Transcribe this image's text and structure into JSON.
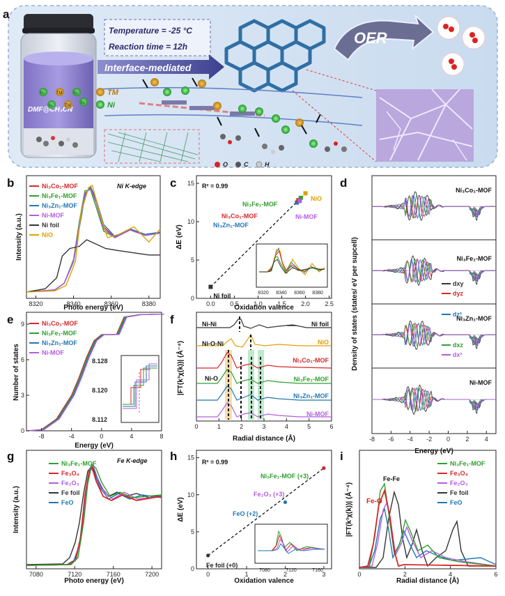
{
  "figure": {
    "panel_letters": [
      "a",
      "b",
      "c",
      "d",
      "e",
      "f",
      "g",
      "h",
      "i"
    ],
    "a": {
      "temp_label": "Temperature = -25 °C",
      "time_label": "Reaction time = 12h",
      "interface_label": "Interface-mediated",
      "oer_label": "OER",
      "tm_label": "TM",
      "ni_label": "Ni",
      "solvent_label": "DMF@CH₃CN",
      "atom_labels": [
        "O",
        "C",
        "H"
      ],
      "vial_labels": [
        "Ni",
        "TM",
        "Ni",
        "Ni",
        "TM",
        "Ni"
      ]
    },
    "colors": {
      "co": "#d62728",
      "fe": "#2ca02c",
      "zn": "#1f77b4",
      "mof": "#b45ce0",
      "foil": "#333333",
      "nio": "#e0a000"
    }
  },
  "chart_data": [
    {
      "id": "b",
      "type": "line",
      "title": "Ni K-edge",
      "xlabel": "Photo energy (eV)",
      "ylabel": "Intensity (a.u.)",
      "xlim": [
        8315,
        8386
      ],
      "xticks": [
        8320,
        8340,
        8360,
        8380
      ],
      "legend": [
        "Ni₃Co₁-MOF",
        "Ni₃Fe₁-MOF",
        "Ni₃Zn₁-MOF",
        "Ni-MOF",
        "Ni foil",
        "NiO"
      ],
      "legend_colors": [
        "#d62728",
        "#2ca02c",
        "#1f77b4",
        "#b45ce0",
        "#333333",
        "#e0a000"
      ],
      "series": [
        {
          "name": "Ni₃Co₁-MOF",
          "x": [
            8315,
            8330,
            8335,
            8340,
            8343,
            8346,
            8349,
            8352,
            8356,
            8362,
            8370,
            8378,
            8386
          ],
          "y": [
            0.02,
            0.04,
            0.1,
            0.3,
            0.62,
            0.92,
            0.98,
            0.85,
            0.62,
            0.52,
            0.6,
            0.54,
            0.57
          ]
        },
        {
          "name": "Ni₃Fe₁-MOF",
          "x": [
            8315,
            8330,
            8335,
            8340,
            8343,
            8346,
            8349,
            8352,
            8356,
            8362,
            8370,
            8378,
            8386
          ],
          "y": [
            0.02,
            0.04,
            0.1,
            0.32,
            0.66,
            0.95,
            0.96,
            0.8,
            0.58,
            0.52,
            0.59,
            0.54,
            0.56
          ]
        },
        {
          "name": "Ni₃Zn₁-MOF",
          "x": [
            8315,
            8330,
            8335,
            8340,
            8343,
            8346,
            8349,
            8352,
            8356,
            8362,
            8370,
            8378,
            8386
          ],
          "y": [
            0.02,
            0.04,
            0.1,
            0.3,
            0.6,
            0.9,
            0.99,
            0.87,
            0.64,
            0.53,
            0.6,
            0.55,
            0.57
          ]
        },
        {
          "name": "Ni-MOF",
          "x": [
            8315,
            8330,
            8335,
            8340,
            8343,
            8346,
            8349,
            8352,
            8356,
            8362,
            8370,
            8378,
            8386
          ],
          "y": [
            0.02,
            0.04,
            0.1,
            0.31,
            0.63,
            0.93,
            0.97,
            0.84,
            0.6,
            0.52,
            0.59,
            0.54,
            0.56
          ]
        },
        {
          "name": "Ni foil",
          "x": [
            8315,
            8325,
            8331,
            8334,
            8338,
            8343,
            8347,
            8352,
            8357,
            8364,
            8372,
            8380,
            8386
          ],
          "y": [
            0.02,
            0.05,
            0.15,
            0.35,
            0.42,
            0.44,
            0.5,
            0.46,
            0.42,
            0.4,
            0.38,
            0.36,
            0.36
          ]
        },
        {
          "name": "NiO",
          "x": [
            8315,
            8330,
            8336,
            8341,
            8344,
            8348,
            8350,
            8354,
            8358,
            8364,
            8372,
            8380,
            8386
          ],
          "y": [
            0.02,
            0.03,
            0.08,
            0.3,
            0.75,
            0.98,
            1.0,
            0.74,
            0.52,
            0.55,
            0.62,
            0.48,
            0.6
          ]
        }
      ]
    },
    {
      "id": "c",
      "type": "scatter",
      "title": "",
      "xlabel": "Oxidation valence",
      "ylabel": "ΔE (eV)",
      "xlim": [
        -0.3,
        2.55
      ],
      "ylim": [
        0,
        16
      ],
      "xticks": [
        0.0,
        0.5,
        1.0,
        1.5,
        2.0,
        2.5
      ],
      "yticks": [
        0,
        5,
        10,
        15
      ],
      "annotation": "R² = 0.99",
      "points": [
        {
          "label": "Ni foil",
          "x": 0.0,
          "y": 1.5,
          "color": "#333333"
        },
        {
          "label": "Ni₃Zn₁-MOF",
          "x": 1.82,
          "y": 12.5,
          "color": "#1f77b4"
        },
        {
          "label": "Ni₃Co₁-MOF",
          "x": 1.85,
          "y": 12.8,
          "color": "#d62728"
        },
        {
          "label": "Ni₃Fe₁-MOF",
          "x": 1.9,
          "y": 13.1,
          "color": "#2ca02c"
        },
        {
          "label": "Ni-MOF",
          "x": 1.88,
          "y": 12.7,
          "color": "#b45ce0"
        },
        {
          "label": "NiO",
          "x": 2.0,
          "y": 13.7,
          "color": "#e0a000"
        }
      ],
      "inset_xticks": [
        8320,
        8340,
        8360,
        8380
      ]
    },
    {
      "id": "d",
      "type": "line",
      "title": "",
      "xlabel": "Energy (eV)",
      "ylabel": "Density of states (states/ eV per supcell)",
      "xlim": [
        -8,
        5
      ],
      "xticks": [
        -8,
        -6,
        -4,
        -2,
        0,
        2,
        4
      ],
      "subpanels": [
        "Ni₃Co₁-MOF",
        "Ni₃Fe₁-MOF",
        "Ni₃Zn₁-MOF",
        "Ni-MOF"
      ],
      "orbitals": [
        "dxy",
        "dyz",
        "dz²",
        "dxz",
        "dx²"
      ],
      "orbital_colors": [
        "#333333",
        "#d62728",
        "#1f77b4",
        "#2ca02c",
        "#b45ce0"
      ]
    },
    {
      "id": "e",
      "type": "line",
      "title": "",
      "xlabel": "Energy (eV)",
      "ylabel": "Number of states",
      "xlim": [
        -10,
        8
      ],
      "ylim": [
        0,
        10
      ],
      "xticks": [
        -8,
        -4,
        0,
        4,
        8
      ],
      "yticks": [
        0,
        3,
        6,
        9
      ],
      "legend": [
        "Ni₃Co₁-MOF",
        "Ni₃Fe₁-MOF",
        "Ni₃Zn₁-MOF",
        "Ni-MOF"
      ],
      "legend_colors": [
        "#d62728",
        "#2ca02c",
        "#1f77b4",
        "#b45ce0"
      ],
      "series": [
        {
          "name": "Ni-MOF",
          "x": [
            -10,
            -8,
            -6,
            -4,
            -3,
            -2,
            -1,
            0,
            1,
            2,
            3,
            5,
            8
          ],
          "y": [
            0,
            0.1,
            1.0,
            3.0,
            4.5,
            6.2,
            7.6,
            8.12,
            8.12,
            8.13,
            9.6,
            9.8,
            9.85
          ]
        }
      ],
      "inset_yticks": [
        "8.128",
        "8.120",
        "8.112"
      ]
    },
    {
      "id": "f",
      "type": "line",
      "title": "",
      "xlabel": "Radial distance (Å)",
      "ylabel": "|FT(k³χ(k))| (Å⁻⁴)",
      "xlim": [
        0,
        6
      ],
      "xticks": [
        0,
        1,
        2,
        3,
        4,
        5,
        6
      ],
      "series_labels": [
        "Ni foil",
        "NiO",
        "Ni₃Co₁-MOF",
        "Ni₃Fe₁-MOF",
        "Ni₃Zn₁-MOF",
        "Ni-MOF"
      ],
      "series_colors": [
        "#333333",
        "#e0a000",
        "#d62728",
        "#2ca02c",
        "#1f77b4",
        "#b45ce0"
      ],
      "shell_labels": [
        "Ni-Ni",
        "Ni-O-Ni",
        "Ni-O"
      ]
    },
    {
      "id": "g",
      "type": "line",
      "title": "Fe K-edge",
      "xlabel": "Photo energy (eV)",
      "ylabel": "Intensity (a.u.)",
      "xlim": [
        7070,
        7210
      ],
      "xticks": [
        7080,
        7120,
        7160,
        7200
      ],
      "legend": [
        "Ni₃Fe₁-MOF",
        "Fe₃O₄",
        "Fe₂O₃",
        "Fe foil",
        "FeO"
      ],
      "legend_colors": [
        "#2ca02c",
        "#d62728",
        "#b45ce0",
        "#333333",
        "#1f77b4"
      ]
    },
    {
      "id": "h",
      "type": "scatter",
      "title": "",
      "xlabel": "Oxidation valence",
      "ylabel": "ΔE (eV)",
      "xlim": [
        -0.3,
        3.2
      ],
      "ylim": [
        0,
        16
      ],
      "xticks": [
        0,
        1,
        2,
        3
      ],
      "yticks": [
        0,
        5,
        10,
        15
      ],
      "annotation": "R² = 0.99",
      "points": [
        {
          "label": "Fe foil (+0)",
          "x": 0,
          "y": 1.8,
          "color": "#333333"
        },
        {
          "label": "FeO (+2)",
          "x": 2,
          "y": 9.0,
          "color": "#1f77b4"
        },
        {
          "label": "Fe₂O₃ (+3)",
          "x": 3,
          "y": 13.6,
          "color": "#b45ce0"
        },
        {
          "label": "Ni₃Fe₁-MOF (+3)",
          "x": 3,
          "y": 13.6,
          "color": "#d62728"
        }
      ],
      "inset_xticks": [
        7080,
        7120,
        7160
      ]
    },
    {
      "id": "i",
      "type": "line",
      "title": "",
      "xlabel": "Radial distance (Å)",
      "ylabel": "|FT(k³χ(k))| (Å⁻⁴)",
      "xlim": [
        0,
        6
      ],
      "xticks": [
        0,
        2,
        4,
        6
      ],
      "legend": [
        "Ni₃Fe₁-MOF",
        "Fe₃O₄",
        "Fe₂O₃",
        "Fe foil",
        "FeO"
      ],
      "legend_colors": [
        "#2ca02c",
        "#d62728",
        "#b45ce0",
        "#333333",
        "#1f77b4"
      ],
      "shell_labels": [
        "Fe-Fe",
        "Fe-O"
      ]
    }
  ]
}
